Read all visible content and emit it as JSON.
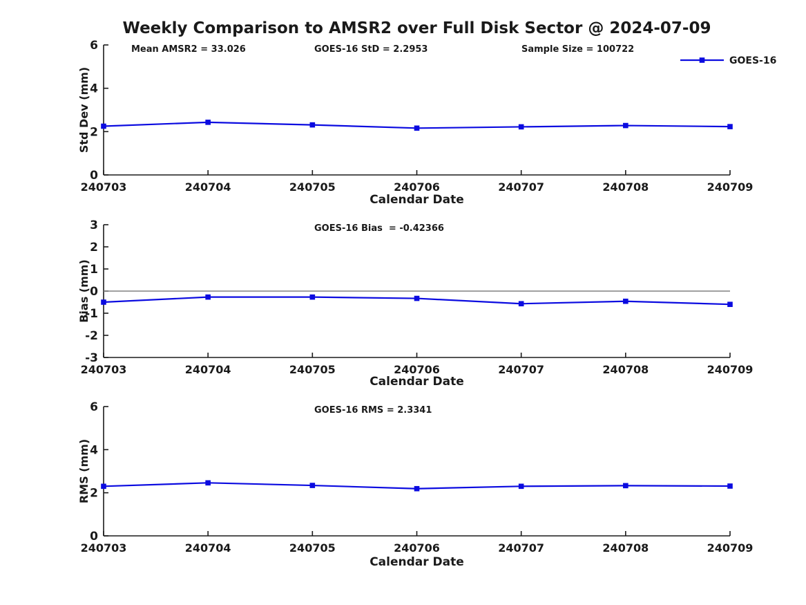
{
  "title": "Weekly Comparison to AMSR2 over Full Disk Sector @ 2024-07-09",
  "colors": {
    "series": "#0b0be0",
    "zero_line": "#808080",
    "axis": "#1a1a1a",
    "text": "#1a1a1a"
  },
  "legend": {
    "label": "GOES-16",
    "position": "top-right"
  },
  "chart_data": [
    {
      "type": "line",
      "name": "std-dev",
      "series_name": "GOES-16",
      "marker": "square",
      "categories": [
        "240703",
        "240704",
        "240705",
        "240706",
        "240707",
        "240708",
        "240709"
      ],
      "values": [
        2.25,
        2.43,
        2.31,
        2.16,
        2.22,
        2.28,
        2.23
      ],
      "xlabel": "Calendar Date",
      "ylabel": "Std Dev (mm)",
      "ylim": [
        0,
        6
      ],
      "yticks": [
        0,
        2,
        4,
        6
      ],
      "grid": false,
      "zero_line": false,
      "annotations": [
        "Mean AMSR2 = 33.026",
        "GOES-16 StD = 2.2953",
        "Sample Size = 100722"
      ],
      "legend_visible": true
    },
    {
      "type": "line",
      "name": "bias",
      "series_name": "GOES-16",
      "marker": "square",
      "categories": [
        "240703",
        "240704",
        "240705",
        "240706",
        "240707",
        "240708",
        "240709"
      ],
      "values": [
        -0.5,
        -0.27,
        -0.27,
        -0.33,
        -0.57,
        -0.46,
        -0.6
      ],
      "xlabel": "Calendar Date",
      "ylabel": "Bias (mm)",
      "ylim": [
        -3,
        3
      ],
      "yticks": [
        -3,
        -2,
        -1,
        0,
        1,
        2,
        3
      ],
      "grid": false,
      "zero_line": true,
      "annotations": [
        "GOES-16 Bias  = -0.42366"
      ],
      "legend_visible": false
    },
    {
      "type": "line",
      "name": "rms",
      "series_name": "GOES-16",
      "marker": "square",
      "categories": [
        "240703",
        "240704",
        "240705",
        "240706",
        "240707",
        "240708",
        "240709"
      ],
      "values": [
        2.3,
        2.46,
        2.34,
        2.19,
        2.3,
        2.33,
        2.31
      ],
      "xlabel": "Calendar Date",
      "ylabel": "RMS (mm)",
      "ylim": [
        0,
        6
      ],
      "yticks": [
        0,
        2,
        4,
        6
      ],
      "grid": false,
      "zero_line": false,
      "annotations": [
        "GOES-16 RMS = 2.3341"
      ],
      "legend_visible": false
    }
  ]
}
